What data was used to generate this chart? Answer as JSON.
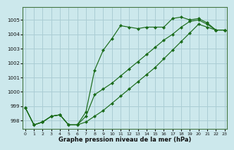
{
  "xlabel": "Graphe pression niveau de la mer (hPa)",
  "background_color": "#cce8ec",
  "plot_bg_color": "#cce8ec",
  "grid_color": "#aacdd4",
  "line_color": "#1a6b1a",
  "marker_color": "#1a6b1a",
  "xlim": [
    -0.3,
    23.3
  ],
  "ylim": [
    997.4,
    1005.9
  ],
  "yticks": [
    998,
    999,
    1000,
    1001,
    1002,
    1003,
    1004,
    1005
  ],
  "xticks": [
    0,
    1,
    2,
    3,
    4,
    5,
    6,
    7,
    8,
    9,
    10,
    11,
    12,
    13,
    14,
    15,
    16,
    17,
    18,
    19,
    20,
    21,
    22,
    23
  ],
  "s1": [
    998.9,
    997.7,
    997.9,
    998.3,
    998.4,
    997.7,
    997.7,
    998.6,
    1001.5,
    1002.9,
    1003.7,
    1004.6,
    1004.5,
    1004.4,
    1004.5,
    1004.5,
    1004.5,
    1005.1,
    1005.2,
    1005.0,
    1005.1,
    1004.8,
    1004.3,
    1004.3
  ],
  "s2": [
    998.9,
    997.7,
    997.9,
    998.3,
    998.4,
    997.7,
    997.7,
    998.3,
    999.8,
    1000.2,
    1000.6,
    1001.1,
    1001.6,
    1002.1,
    1002.6,
    1003.1,
    1003.6,
    1004.0,
    1004.5,
    1004.9,
    1005.0,
    1004.7,
    1004.3,
    1004.3
  ],
  "s3": [
    998.9,
    997.7,
    997.9,
    998.3,
    998.4,
    997.7,
    997.7,
    997.9,
    998.3,
    998.7,
    999.2,
    999.7,
    1000.2,
    1000.7,
    1001.2,
    1001.7,
    1002.3,
    1002.9,
    1003.5,
    1004.1,
    1004.7,
    1004.5,
    1004.3,
    1004.3
  ]
}
